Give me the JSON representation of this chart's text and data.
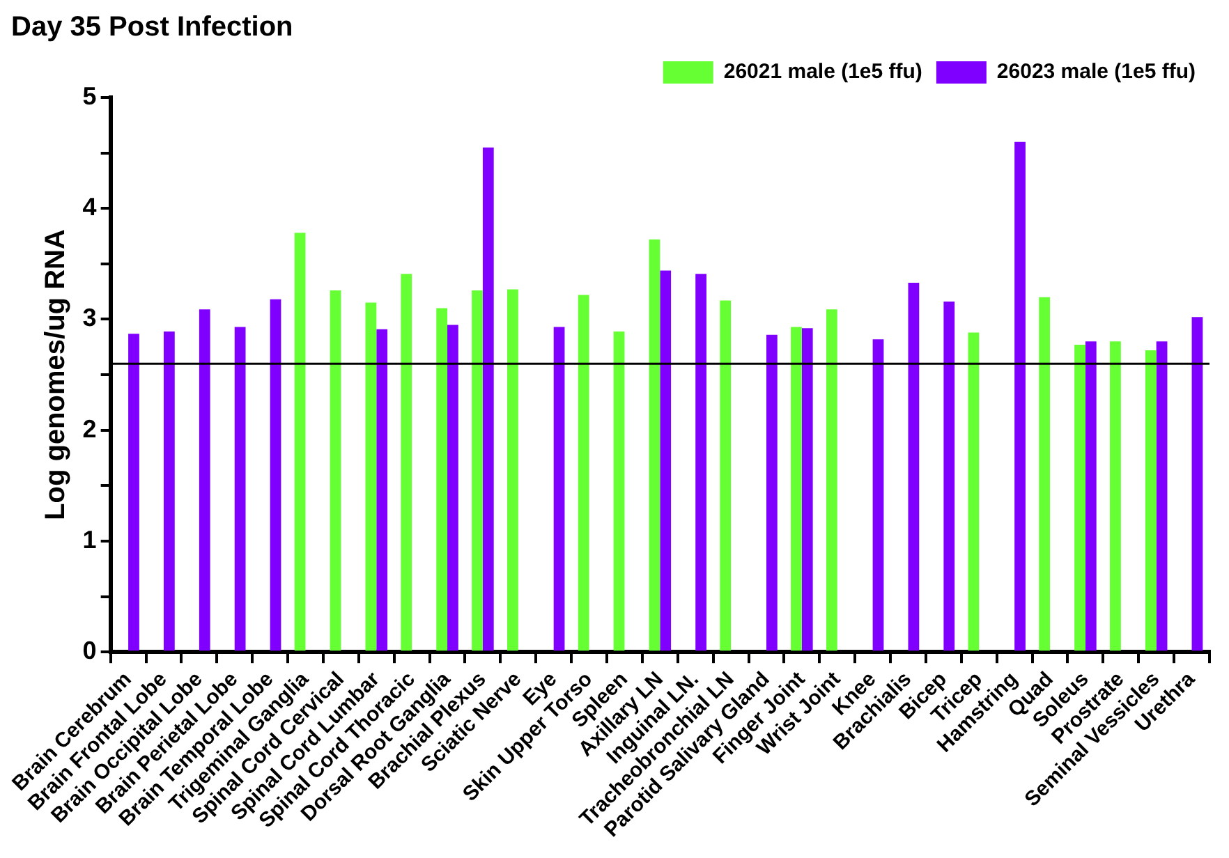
{
  "chart_data": {
    "type": "bar",
    "title": "Day 35 Post Infection",
    "ylabel": "Log genomes/ug RNA",
    "categories": [
      "Brain Cerebrum",
      "Brain Frontal Lobe",
      "Brain Occipital Lobe",
      "Brain Perietal Lobe",
      "Brain Temporal Lobe",
      "Trigeminal Ganglia",
      "Spinal Cord Cervical",
      "Spinal Cord Lumbar",
      "Spinal Cord Thoracic",
      "Dorsal Root Ganglia",
      "Brachial Plexus",
      "Sciatic Nerve",
      "Eye",
      "Skin Upper Torso",
      "Spleen",
      "Axillary LN",
      "Inguinal LN.",
      "Tracheobronchial LN",
      "Parotid Salivary Gland",
      "Finger Joint",
      "Wrist Joint",
      "Knee",
      "Brachialis",
      "Bicep",
      "Tricep",
      "Hamstring",
      "Quad",
      "Soleus",
      "Prostrate",
      "Seminal Vessicles",
      "Urethra"
    ],
    "series": [
      {
        "name": "26021 male (1e5 ffu)",
        "color": "#66ff33",
        "values": [
          null,
          null,
          null,
          null,
          null,
          3.78,
          3.26,
          3.15,
          3.41,
          3.1,
          3.26,
          3.27,
          null,
          3.22,
          2.89,
          3.72,
          null,
          3.17,
          null,
          2.93,
          3.09,
          null,
          null,
          null,
          2.88,
          null,
          3.2,
          2.77,
          2.8,
          2.72,
          null
        ]
      },
      {
        "name": "26023 male (1e5 ffu)",
        "color": "#8000ff",
        "values": [
          2.87,
          2.89,
          3.09,
          2.93,
          3.18,
          null,
          null,
          2.91,
          null,
          2.95,
          4.55,
          null,
          2.93,
          null,
          null,
          3.44,
          3.41,
          null,
          2.86,
          2.92,
          null,
          2.82,
          3.33,
          3.16,
          null,
          4.6,
          null,
          2.8,
          null,
          2.8,
          3.02
        ]
      }
    ],
    "ylim": [
      0,
      5
    ],
    "yticks": [
      0,
      {
        "value": 0.5,
        "label": null
      },
      1,
      {
        "value": 1.5,
        "label": null
      },
      2,
      {
        "value": 2.5,
        "label": null
      },
      3,
      {
        "value": 3.5,
        "label": null
      },
      4,
      {
        "value": 4.5,
        "label": null
      },
      5
    ],
    "ref_lines": [
      {
        "axis": "y",
        "value": 2.6,
        "color": "#000000"
      }
    ],
    "grid": false,
    "legend": "top right"
  }
}
